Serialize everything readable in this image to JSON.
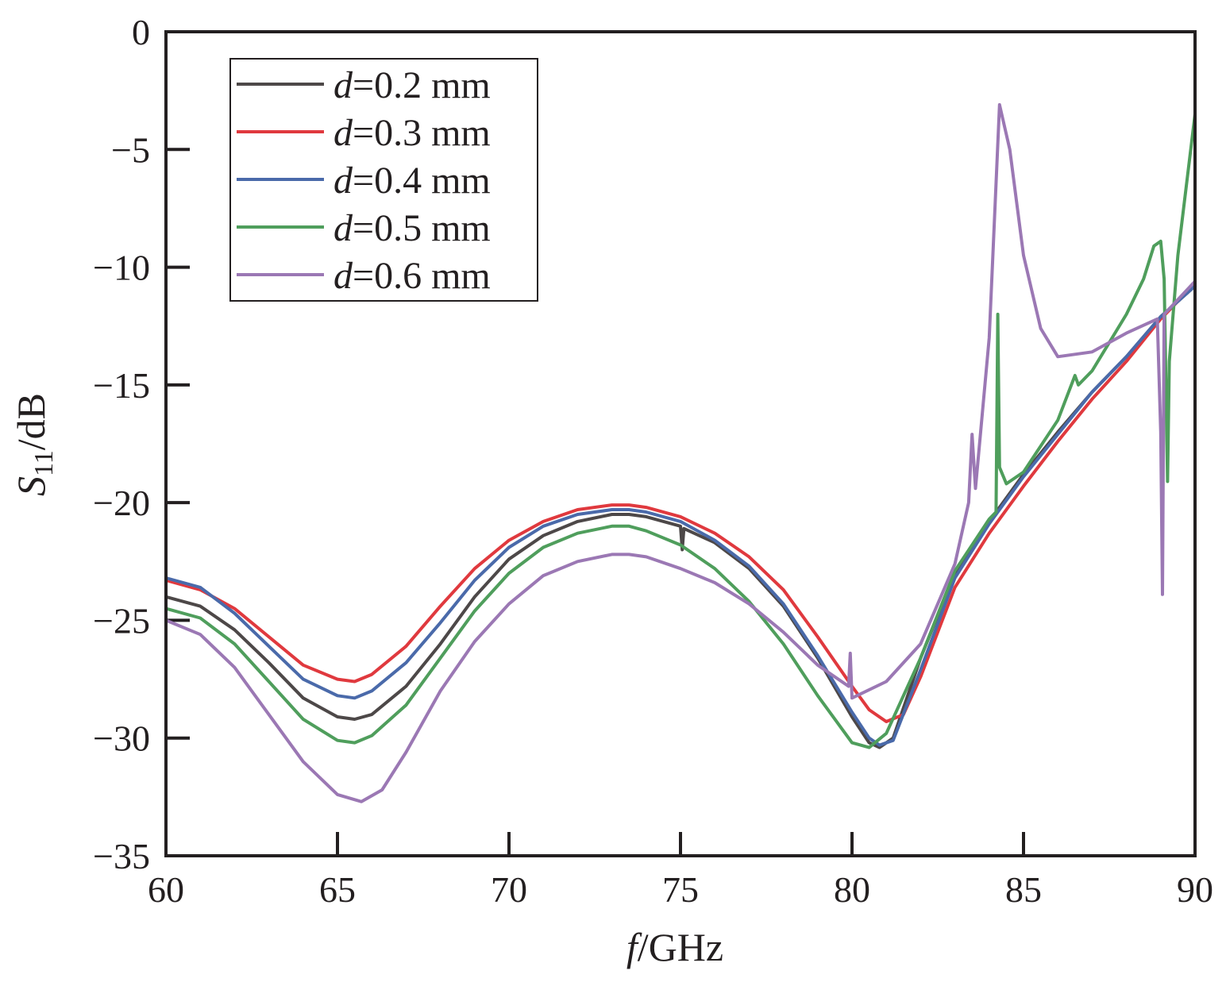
{
  "chart_data": {
    "type": "line",
    "xlabel": {
      "var": "f",
      "unit": "/GHz"
    },
    "ylabel": {
      "var": "S",
      "sub": "11",
      "unit": "/dB"
    },
    "xlim": [
      60,
      90
    ],
    "ylim": [
      -35,
      0
    ],
    "xticks": [
      60,
      65,
      70,
      75,
      80,
      85,
      90
    ],
    "yticks": [
      0,
      -5,
      -10,
      -15,
      -20,
      -25,
      -30,
      -35
    ],
    "grid": false,
    "legend_position": "top-left",
    "series": [
      {
        "name": "d=0.2 mm",
        "legend": {
          "var": "d",
          "rest": "=0.2 mm"
        },
        "color": "#4d4848",
        "points": [
          [
            60,
            -24
          ],
          [
            61,
            -24.4
          ],
          [
            62,
            -25.4
          ],
          [
            63,
            -26.8
          ],
          [
            64,
            -28.3
          ],
          [
            65,
            -29.1
          ],
          [
            65.5,
            -29.2
          ],
          [
            66,
            -29
          ],
          [
            67,
            -27.8
          ],
          [
            68,
            -26
          ],
          [
            69,
            -24
          ],
          [
            70,
            -22.4
          ],
          [
            71,
            -21.4
          ],
          [
            72,
            -20.8
          ],
          [
            73,
            -20.5
          ],
          [
            73.5,
            -20.5
          ],
          [
            74,
            -20.6
          ],
          [
            75,
            -21
          ],
          [
            75.05,
            -22
          ],
          [
            75.1,
            -21.1
          ],
          [
            76,
            -21.7
          ],
          [
            77,
            -22.8
          ],
          [
            78,
            -24.4
          ],
          [
            79,
            -26.6
          ],
          [
            80,
            -29.1
          ],
          [
            80.5,
            -30.2
          ],
          [
            80.8,
            -30.4
          ],
          [
            81.2,
            -30
          ],
          [
            82,
            -26.6
          ],
          [
            83,
            -23
          ],
          [
            84,
            -20.8
          ],
          [
            85,
            -18.8
          ],
          [
            86,
            -17
          ],
          [
            87,
            -15.3
          ],
          [
            88,
            -13.8
          ],
          [
            89,
            -12.1
          ],
          [
            90,
            -10.8
          ]
        ]
      },
      {
        "name": "d=0.3 mm",
        "legend": {
          "var": "d",
          "rest": "=0.3 mm"
        },
        "color": "#e0393e",
        "points": [
          [
            60,
            -23.3
          ],
          [
            61,
            -23.7
          ],
          [
            62,
            -24.5
          ],
          [
            63,
            -25.7
          ],
          [
            64,
            -26.9
          ],
          [
            65,
            -27.5
          ],
          [
            65.5,
            -27.6
          ],
          [
            66,
            -27.3
          ],
          [
            67,
            -26.1
          ],
          [
            68,
            -24.4
          ],
          [
            69,
            -22.8
          ],
          [
            70,
            -21.6
          ],
          [
            71,
            -20.8
          ],
          [
            72,
            -20.3
          ],
          [
            73,
            -20.1
          ],
          [
            73.5,
            -20.1
          ],
          [
            74,
            -20.2
          ],
          [
            75,
            -20.6
          ],
          [
            76,
            -21.3
          ],
          [
            77,
            -22.3
          ],
          [
            78,
            -23.7
          ],
          [
            79,
            -25.7
          ],
          [
            80,
            -27.8
          ],
          [
            80.5,
            -28.8
          ],
          [
            81,
            -29.3
          ],
          [
            81.5,
            -29
          ],
          [
            82,
            -27.4
          ],
          [
            83,
            -23.6
          ],
          [
            84,
            -21.3
          ],
          [
            85,
            -19.3
          ],
          [
            86,
            -17.4
          ],
          [
            87,
            -15.6
          ],
          [
            88,
            -14
          ],
          [
            89,
            -12.2
          ],
          [
            90,
            -10.7
          ]
        ]
      },
      {
        "name": "d=0.4 mm",
        "legend": {
          "var": "d",
          "rest": "=0.4 mm"
        },
        "color": "#4a6aaa",
        "points": [
          [
            60,
            -23.2
          ],
          [
            61,
            -23.6
          ],
          [
            62,
            -24.7
          ],
          [
            63,
            -26.1
          ],
          [
            64,
            -27.5
          ],
          [
            65,
            -28.2
          ],
          [
            65.5,
            -28.3
          ],
          [
            66,
            -28
          ],
          [
            67,
            -26.8
          ],
          [
            68,
            -25.1
          ],
          [
            69,
            -23.3
          ],
          [
            70,
            -21.9
          ],
          [
            71,
            -21
          ],
          [
            72,
            -20.5
          ],
          [
            73,
            -20.3
          ],
          [
            73.5,
            -20.3
          ],
          [
            74,
            -20.4
          ],
          [
            75,
            -20.8
          ],
          [
            76,
            -21.6
          ],
          [
            77,
            -22.7
          ],
          [
            78,
            -24.3
          ],
          [
            79,
            -26.5
          ],
          [
            80,
            -28.9
          ],
          [
            80.5,
            -30
          ],
          [
            80.8,
            -30.3
          ],
          [
            81.2,
            -30.1
          ],
          [
            82,
            -27.1
          ],
          [
            83,
            -23.2
          ],
          [
            84,
            -20.9
          ],
          [
            85,
            -18.9
          ],
          [
            86,
            -17.1
          ],
          [
            87,
            -15.3
          ],
          [
            88,
            -13.8
          ],
          [
            89,
            -12.1
          ],
          [
            90,
            -10.8
          ]
        ]
      },
      {
        "name": "d=0.5 mm",
        "legend": {
          "var": "d",
          "rest": "=0.5 mm"
        },
        "color": "#4f9e5c",
        "points": [
          [
            60,
            -24.5
          ],
          [
            61,
            -24.9
          ],
          [
            62,
            -26
          ],
          [
            63,
            -27.6
          ],
          [
            64,
            -29.2
          ],
          [
            65,
            -30.1
          ],
          [
            65.5,
            -30.2
          ],
          [
            66,
            -29.9
          ],
          [
            67,
            -28.6
          ],
          [
            68,
            -26.6
          ],
          [
            69,
            -24.6
          ],
          [
            70,
            -23
          ],
          [
            71,
            -21.9
          ],
          [
            72,
            -21.3
          ],
          [
            73,
            -21
          ],
          [
            73.5,
            -21
          ],
          [
            74,
            -21.2
          ],
          [
            75,
            -21.8
          ],
          [
            76,
            -22.8
          ],
          [
            77,
            -24.2
          ],
          [
            78,
            -26
          ],
          [
            79,
            -28.2
          ],
          [
            80,
            -30.2
          ],
          [
            80.5,
            -30.4
          ],
          [
            81,
            -29.8
          ],
          [
            82,
            -26.6
          ],
          [
            83,
            -22.9
          ],
          [
            84,
            -20.7
          ],
          [
            84.2,
            -20.4
          ],
          [
            84.25,
            -12
          ],
          [
            84.3,
            -18.5
          ],
          [
            84.5,
            -19.2
          ],
          [
            85,
            -18.7
          ],
          [
            86,
            -16.5
          ],
          [
            86.5,
            -14.6
          ],
          [
            86.6,
            -15
          ],
          [
            87,
            -14.4
          ],
          [
            88,
            -12
          ],
          [
            88.5,
            -10.5
          ],
          [
            88.8,
            -9.1
          ],
          [
            89,
            -8.9
          ],
          [
            89.1,
            -10.5
          ],
          [
            89.2,
            -19.1
          ],
          [
            89.25,
            -14
          ],
          [
            89.5,
            -9.5
          ],
          [
            90,
            -3.5
          ],
          [
            90,
            -2.4
          ]
        ]
      },
      {
        "name": "d=0.6 mm",
        "legend": {
          "var": "d",
          "rest": "=0.6 mm"
        },
        "color": "#9b78b4",
        "points": [
          [
            60,
            -25
          ],
          [
            61,
            -25.6
          ],
          [
            62,
            -27
          ],
          [
            63,
            -29
          ],
          [
            64,
            -31
          ],
          [
            65,
            -32.4
          ],
          [
            65.7,
            -32.7
          ],
          [
            66.3,
            -32.2
          ],
          [
            67,
            -30.6
          ],
          [
            68,
            -28
          ],
          [
            69,
            -25.9
          ],
          [
            70,
            -24.3
          ],
          [
            71,
            -23.1
          ],
          [
            72,
            -22.5
          ],
          [
            73,
            -22.2
          ],
          [
            73.5,
            -22.2
          ],
          [
            74,
            -22.3
          ],
          [
            75,
            -22.8
          ],
          [
            76,
            -23.4
          ],
          [
            77,
            -24.3
          ],
          [
            78,
            -25.5
          ],
          [
            79,
            -26.9
          ],
          [
            79.9,
            -27.8
          ],
          [
            79.95,
            -26.4
          ],
          [
            80,
            -28.3
          ],
          [
            81,
            -27.6
          ],
          [
            82,
            -26
          ],
          [
            83,
            -22.6
          ],
          [
            83.4,
            -20
          ],
          [
            83.5,
            -17.1
          ],
          [
            83.6,
            -19.4
          ],
          [
            84,
            -13
          ],
          [
            84.3,
            -3.1
          ],
          [
            84.6,
            -5
          ],
          [
            85,
            -9.5
          ],
          [
            85.5,
            -12.6
          ],
          [
            86,
            -13.8
          ],
          [
            87,
            -13.6
          ],
          [
            88,
            -12.8
          ],
          [
            88.9,
            -12.2
          ],
          [
            89,
            -17
          ],
          [
            89.05,
            -23.9
          ],
          [
            89.1,
            -12
          ],
          [
            90,
            -10.6
          ]
        ]
      }
    ]
  }
}
